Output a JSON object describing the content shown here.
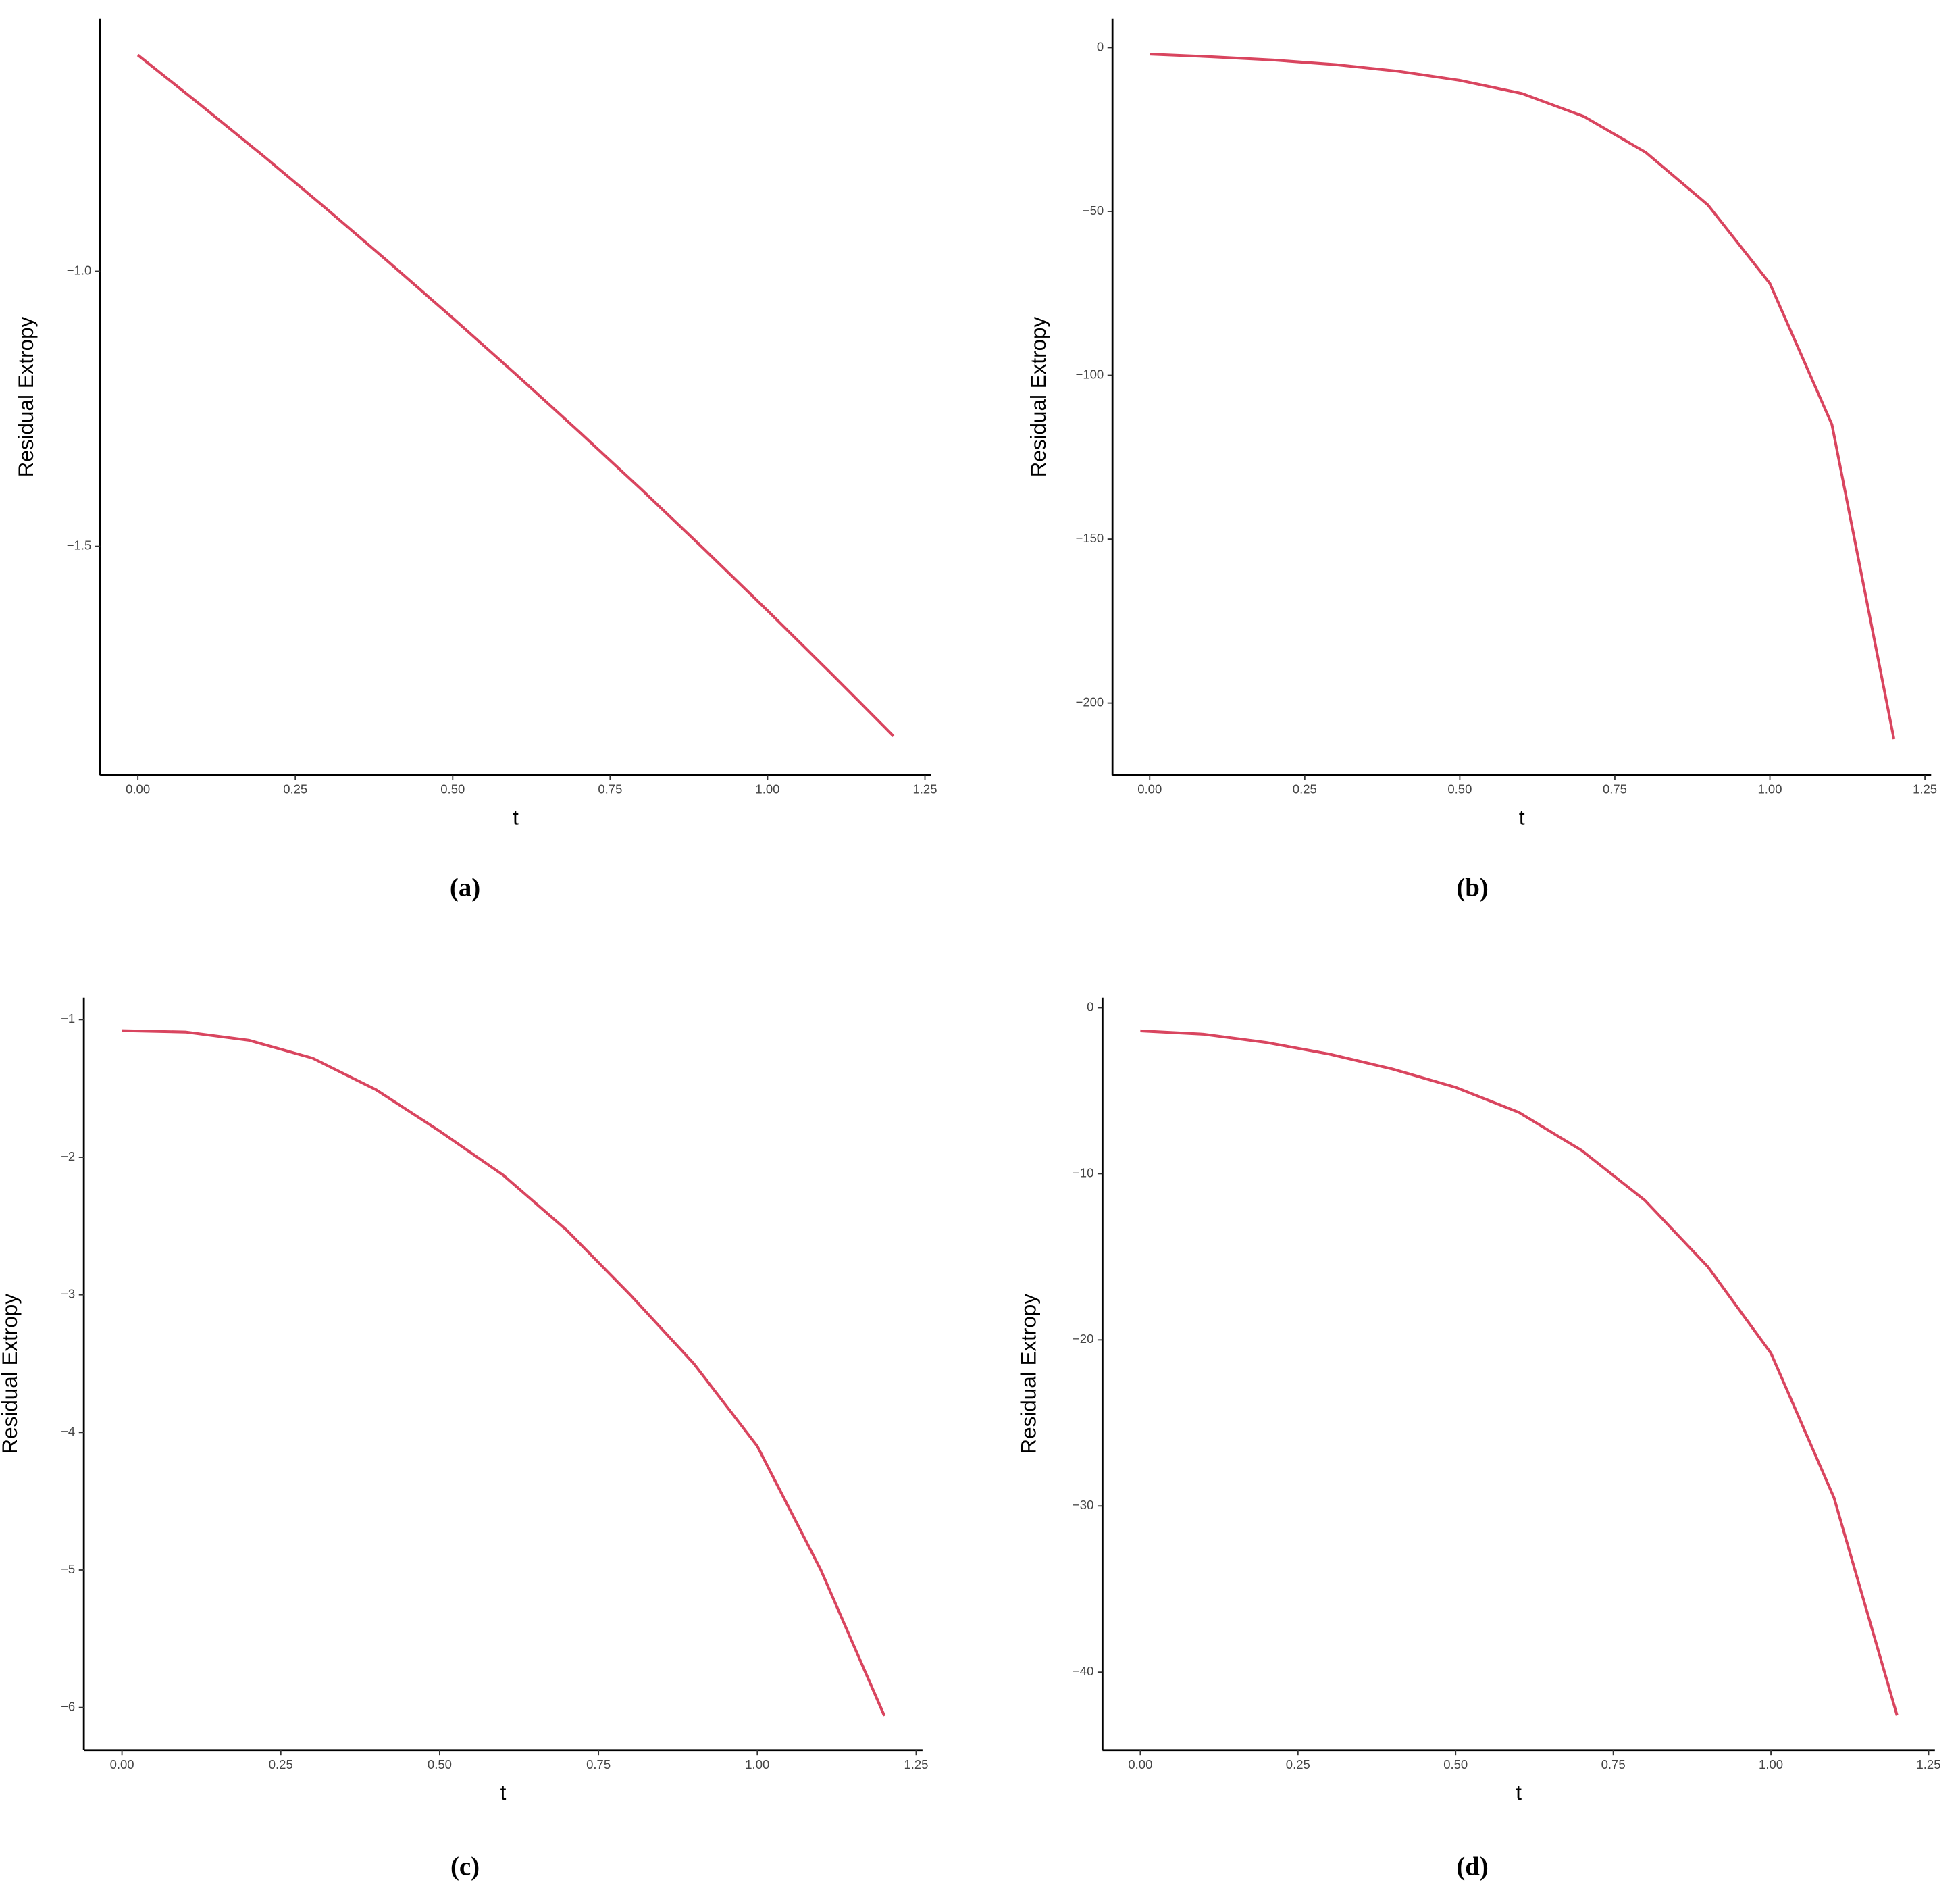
{
  "chart_data": [
    {
      "type": "line",
      "caption": "(a)",
      "xlabel": "t",
      "ylabel": "Residual Extropy",
      "color": "#d9455f",
      "x": [
        0,
        0.1,
        0.2,
        0.3,
        0.4,
        0.5,
        0.6,
        0.7,
        0.8,
        0.9,
        1.0,
        1.1,
        1.2
      ],
      "values": [
        -0.607,
        -0.698,
        -0.791,
        -0.887,
        -0.985,
        -1.085,
        -1.187,
        -1.291,
        -1.397,
        -1.506,
        -1.617,
        -1.73,
        -1.845
      ],
      "xlim": [
        -0.06,
        1.26
      ],
      "xticks": [
        {
          "value": 0,
          "label": "0.00"
        },
        {
          "value": 0.25,
          "label": "0.25"
        },
        {
          "value": 0.5,
          "label": "0.50"
        },
        {
          "value": 0.75,
          "label": "0.75"
        },
        {
          "value": 1,
          "label": "1.00"
        },
        {
          "value": 1.25,
          "label": "1.25"
        }
      ],
      "ylim": [
        -1.916,
        -0.541
      ],
      "yticks": [
        {
          "value": -1.0,
          "label": "−1.0"
        },
        {
          "value": -1.5,
          "label": "−1.5"
        }
      ]
    },
    {
      "type": "line",
      "caption": "(b)",
      "xlabel": "t",
      "ylabel": "Residual Extropy",
      "color": "#d9455f",
      "x": [
        0,
        0.1,
        0.2,
        0.3,
        0.4,
        0.5,
        0.6,
        0.7,
        0.8,
        0.9,
        1.0,
        1.1,
        1.2
      ],
      "values": [
        -2,
        -2.8,
        -3.8,
        -5.2,
        -7.2,
        -10,
        -14,
        -21,
        -32,
        -48,
        -72,
        -115,
        -211
      ],
      "xlim": [
        -0.06,
        1.26
      ],
      "xticks": [
        {
          "value": 0,
          "label": "0.00"
        },
        {
          "value": 0.25,
          "label": "0.25"
        },
        {
          "value": 0.5,
          "label": "0.50"
        },
        {
          "value": 0.75,
          "label": "0.75"
        },
        {
          "value": 1,
          "label": "1.00"
        },
        {
          "value": 1.25,
          "label": "1.25"
        }
      ],
      "ylim": [
        -222,
        8.8
      ],
      "yticks": [
        0,
        {
          "value": -50,
          "label": "−50"
        },
        {
          "value": -100,
          "label": "−100"
        },
        {
          "value": -150,
          "label": "−150"
        },
        {
          "value": -200,
          "label": "−200"
        }
      ]
    },
    {
      "type": "line",
      "caption": "(c)",
      "xlabel": "t",
      "ylabel": "Residual Extropy",
      "color": "#d9455f",
      "x": [
        0,
        0.1,
        0.2,
        0.3,
        0.4,
        0.5,
        0.6,
        0.7,
        0.8,
        0.9,
        1.0,
        1.1,
        1.2
      ],
      "values": [
        -1.08,
        -1.09,
        -1.15,
        -1.28,
        -1.51,
        -1.81,
        -2.13,
        -2.53,
        -3.0,
        -3.5,
        -4.1,
        -5.0,
        -6.06
      ],
      "xlim": [
        -0.06,
        1.26
      ],
      "xticks": [
        {
          "value": 0,
          "label": "0.00"
        },
        {
          "value": 0.25,
          "label": "0.25"
        },
        {
          "value": 0.5,
          "label": "0.50"
        },
        {
          "value": 0.75,
          "label": "0.75"
        },
        {
          "value": 1,
          "label": "1.00"
        },
        {
          "value": 1.25,
          "label": "1.25"
        }
      ],
      "ylim": [
        -6.31,
        -0.84
      ],
      "yticks": [
        {
          "value": -1,
          "label": "−1"
        },
        {
          "value": -2,
          "label": "−2"
        },
        {
          "value": -3,
          "label": "−3"
        },
        {
          "value": -4,
          "label": "−4"
        },
        {
          "value": -5,
          "label": "−5"
        },
        {
          "value": -6,
          "label": "−6"
        }
      ]
    },
    {
      "type": "line",
      "caption": "(d)",
      "xlabel": "t",
      "ylabel": "Residual Extropy",
      "color": "#d9455f",
      "x": [
        0,
        0.1,
        0.2,
        0.3,
        0.4,
        0.5,
        0.6,
        0.7,
        0.8,
        0.9,
        1.0,
        1.1,
        1.2
      ],
      "values": [
        -1.4,
        -1.6,
        -2.1,
        -2.8,
        -3.7,
        -4.8,
        -6.3,
        -8.6,
        -11.6,
        -15.6,
        -20.8,
        -29.5,
        -42.6
      ],
      "xlim": [
        -0.06,
        1.26
      ],
      "xticks": [
        {
          "value": 0,
          "label": "0.00"
        },
        {
          "value": 0.25,
          "label": "0.25"
        },
        {
          "value": 0.5,
          "label": "0.50"
        },
        {
          "value": 0.75,
          "label": "0.75"
        },
        {
          "value": 1,
          "label": "1.00"
        },
        {
          "value": 1.25,
          "label": "1.25"
        }
      ],
      "ylim": [
        -44.7,
        0.6
      ],
      "yticks": [
        0,
        {
          "value": -10,
          "label": "−10"
        },
        {
          "value": -20,
          "label": "−20"
        },
        {
          "value": -30,
          "label": "−30"
        },
        {
          "value": -40,
          "label": "−40"
        }
      ]
    }
  ]
}
